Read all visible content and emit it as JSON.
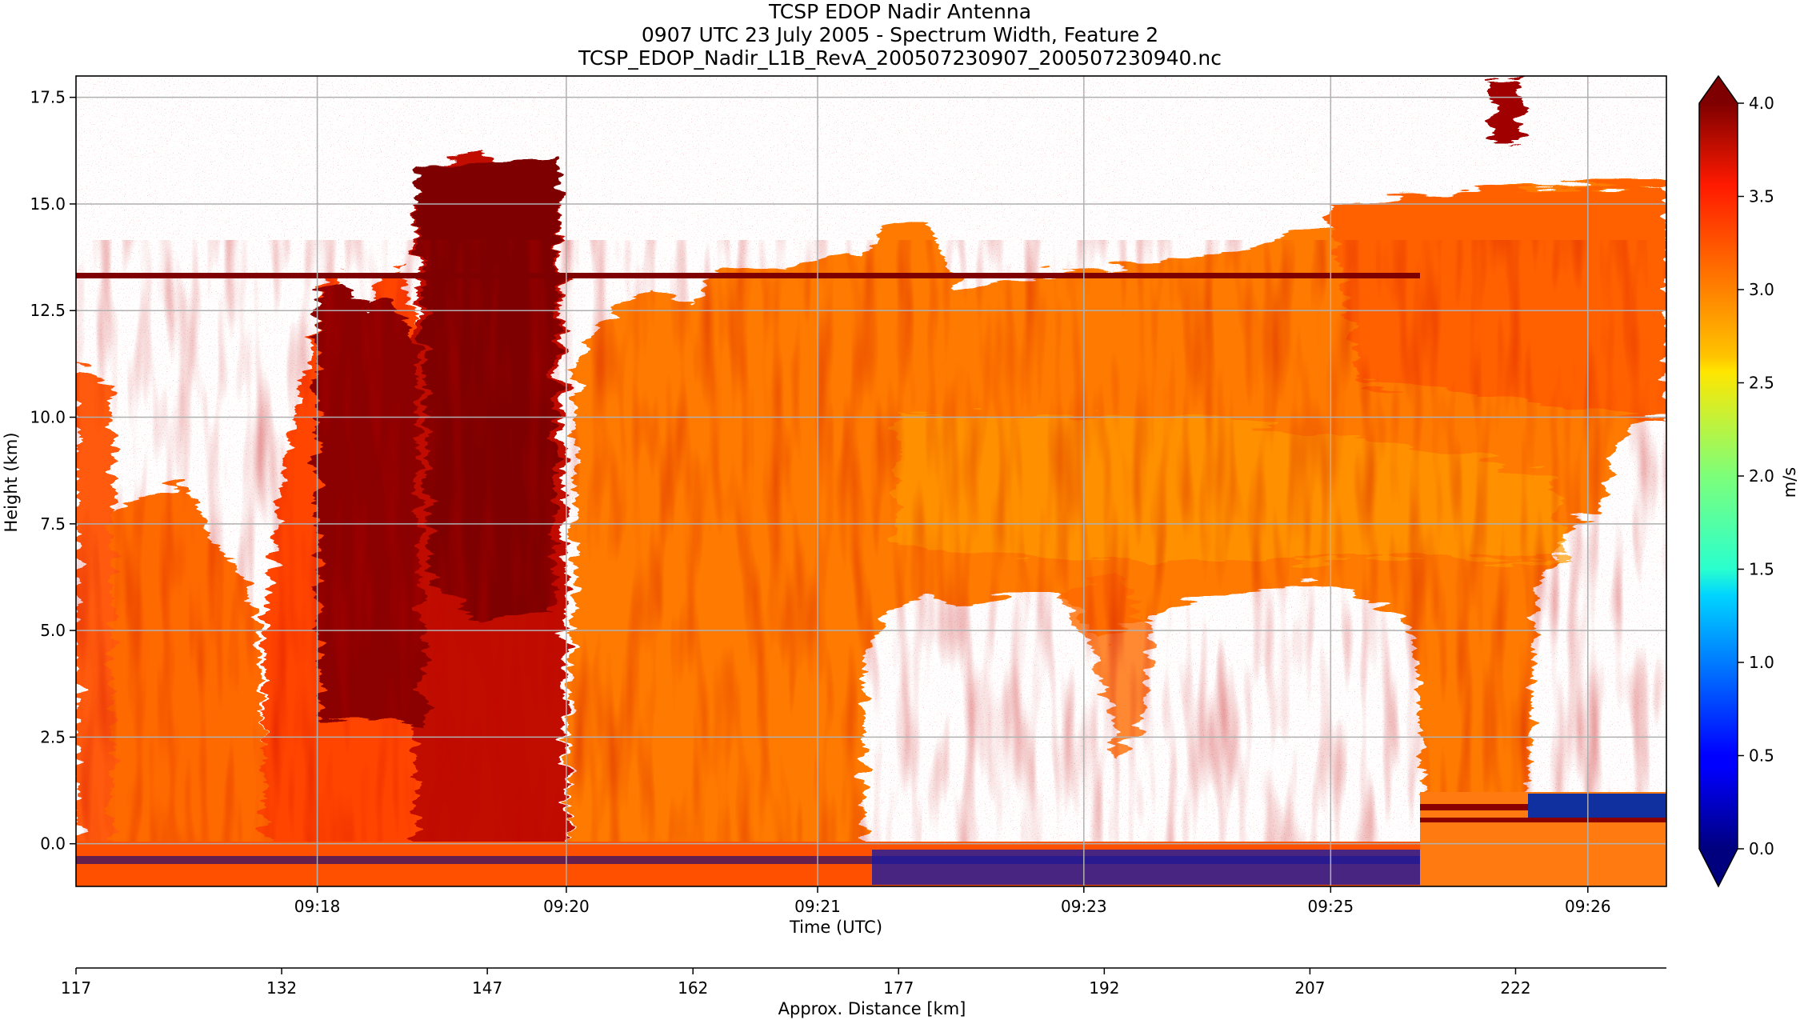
{
  "title_lines": [
    "TCSP EDOP Nadir Antenna",
    "0907 UTC 23 July 2005 - Spectrum Width, Feature 2",
    "TCSP_EDOP_Nadir_L1B_RevA_200507230907_200507230940.nc"
  ],
  "chart_data": {
    "type": "heatmap",
    "xlabel": "Time (UTC)",
    "ylabel": "Height (km)",
    "ylim": [
      -1.0,
      18.0
    ],
    "yticks": [
      "0.0",
      "2.5",
      "5.0",
      "7.5",
      "10.0",
      "12.5",
      "15.0",
      "17.5"
    ],
    "ytick_values": [
      0.0,
      2.5,
      5.0,
      7.5,
      10.0,
      12.5,
      15.0,
      17.5
    ],
    "xticks": [
      "09:18",
      "09:20",
      "09:21",
      "09:23",
      "09:25",
      "09:26"
    ],
    "xtick_fraction": [
      0.1517,
      0.3083,
      0.4663,
      0.6337,
      0.7889,
      0.9506
    ],
    "grid": true,
    "secondary_xlabel": "Approx. Distance [km]",
    "secondary_xlim": [
      117,
      233
    ],
    "secondary_xticks": [
      "117",
      "132",
      "147",
      "162",
      "177",
      "192",
      "207",
      "222"
    ],
    "secondary_xtick_values": [
      117,
      132,
      147,
      162,
      177,
      192,
      207,
      222
    ],
    "colorbar": {
      "label": "m/s",
      "range": [
        0.0,
        4.0
      ],
      "ticks": [
        "0.0",
        "0.5",
        "1.0",
        "1.5",
        "2.0",
        "2.5",
        "3.0",
        "3.5",
        "4.0"
      ],
      "tick_values": [
        0.0,
        0.5,
        1.0,
        1.5,
        2.0,
        2.5,
        3.0,
        3.5,
        4.0
      ],
      "colormap": "jet",
      "extend": "both"
    }
  }
}
